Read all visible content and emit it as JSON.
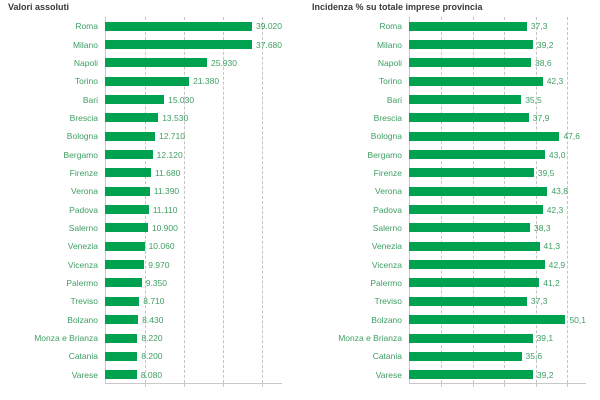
{
  "accent_color": "#00A24F",
  "text_color": "#3f9e63",
  "chart_data": [
    {
      "type": "bar",
      "orientation": "horizontal",
      "title": "Valori assoluti",
      "categories": [
        "Roma",
        "Milano",
        "Napoli",
        "Torino",
        "Bari",
        "Brescia",
        "Bologna",
        "Bergamo",
        "Firenze",
        "Verona",
        "Padova",
        "Salerno",
        "Venezia",
        "Vicenza",
        "Palermo",
        "Treviso",
        "Bolzano",
        "Monza e Brianza",
        "Catania",
        "Varese"
      ],
      "values": [
        39020,
        37680,
        25930,
        21380,
        15030,
        13530,
        12710,
        12120,
        11680,
        11390,
        11110,
        10900,
        10060,
        9970,
        9350,
        8710,
        8430,
        8220,
        8200,
        8080
      ],
      "value_labels": [
        "39.020",
        "37.680",
        "25.930",
        "21.380",
        "15.030",
        "13.530",
        "12.710",
        "12.120",
        "11.680",
        "11.390",
        "11.110",
        "10.900",
        "10.060",
        "9.970",
        "9.350",
        "8.710",
        "8.430",
        "8.220",
        "8.200",
        "8.080"
      ],
      "xlim": [
        0,
        45000
      ],
      "grid_ticks": [
        10000,
        20000,
        30000,
        40000
      ],
      "grid": true,
      "legend": "none",
      "bar_color": "#00A24F"
    },
    {
      "type": "bar",
      "orientation": "horizontal",
      "title": "Incidenza % su totale imprese provincia",
      "categories": [
        "Roma",
        "Milano",
        "Napoli",
        "Torino",
        "Bari",
        "Brescia",
        "Bologna",
        "Bergamo",
        "Firenze",
        "Verona",
        "Padova",
        "Salerno",
        "Venezia",
        "Vicenza",
        "Palermo",
        "Treviso",
        "Bolzano",
        "Monza e Brianza",
        "Catania",
        "Varese"
      ],
      "values": [
        37.3,
        39.2,
        38.6,
        42.3,
        35.5,
        37.9,
        47.6,
        43.0,
        39.5,
        43.8,
        42.3,
        38.3,
        41.3,
        42.9,
        41.2,
        37.3,
        50.1,
        39.1,
        35.6,
        39.2
      ],
      "value_labels": [
        "37,3",
        "39,2",
        "38,6",
        "42,3",
        "35,5",
        "37,9",
        "47,6",
        "43,0",
        "39,5",
        "43,8",
        "42,3",
        "38,3",
        "41,3",
        "42,9",
        "41,2",
        "37,3",
        "50,1",
        "39,1",
        "35,6",
        "39,2"
      ],
      "xlim": [
        0,
        56
      ],
      "grid_ticks": [
        10,
        20,
        30,
        40,
        50
      ],
      "grid": true,
      "legend": "none",
      "bar_color": "#00A24F"
    }
  ]
}
